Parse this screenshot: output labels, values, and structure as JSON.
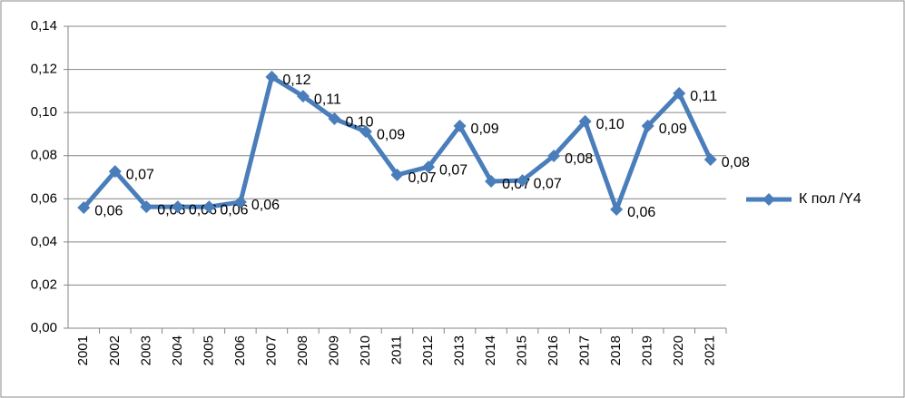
{
  "chart_data": {
    "type": "line",
    "categories": [
      "2001",
      "2002",
      "2003",
      "2004",
      "2005",
      "2006",
      "2007",
      "2008",
      "2009",
      "2010",
      "2011",
      "2012",
      "2013",
      "2014",
      "2015",
      "2016",
      "2017",
      "2018",
      "2019",
      "2020",
      "2021"
    ],
    "series": [
      {
        "name": "К пол /Y4",
        "color": "#4a7ebb",
        "values": [
          0.0559,
          0.0727,
          0.0563,
          0.0563,
          0.0563,
          0.0585,
          0.1165,
          0.1076,
          0.0971,
          0.0912,
          0.0711,
          0.0748,
          0.0938,
          0.0681,
          0.0685,
          0.0799,
          0.0959,
          0.0551,
          0.0938,
          0.1089,
          0.0782
        ],
        "value_labels": [
          "0,06",
          "0,07",
          "0,06",
          "0,06",
          "0,06",
          "0,06",
          "0,12",
          "0,11",
          "0,10",
          "0,09",
          "0,07",
          "0,07",
          "0,09",
          "0,07",
          "0,07",
          "0,08",
          "0,10",
          "0,06",
          "0,09",
          "0,11",
          "0,08"
        ]
      }
    ],
    "ylim": [
      0,
      0.14
    ],
    "yticks": [
      {
        "value": 0,
        "label": "0,00"
      },
      {
        "value": 0.02,
        "label": "0,02"
      },
      {
        "value": 0.04,
        "label": "0,04"
      },
      {
        "value": 0.06,
        "label": "0,06"
      },
      {
        "value": 0.08,
        "label": "0,08"
      },
      {
        "value": 0.1,
        "label": "0,10"
      },
      {
        "value": 0.12,
        "label": "0,12"
      },
      {
        "value": 0.14,
        "label": "0,14"
      }
    ],
    "grid": true,
    "legend": "right"
  }
}
